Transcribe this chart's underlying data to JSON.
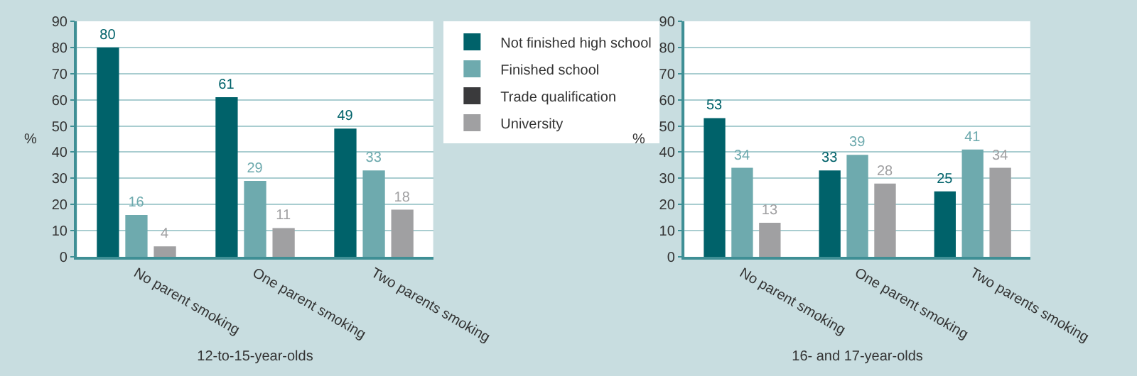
{
  "chart_data": [
    {
      "type": "bar",
      "xlabel": "12-to-15-year-olds",
      "ylabel": "%",
      "categories": [
        "No parent smoking",
        "One parent smoking",
        "Two parents smoking"
      ],
      "series": [
        {
          "name": "Not finished high school",
          "color": "#00626a",
          "values": [
            80,
            61,
            49
          ]
        },
        {
          "name": "Finished school",
          "color": "#6eaaae",
          "values": [
            16,
            29,
            33
          ]
        },
        {
          "name": "Trade qualification",
          "color": "#3a3a3c",
          "values": [
            null,
            null,
            null
          ]
        },
        {
          "name": "University",
          "color": "#a0a0a2",
          "values": [
            4,
            11,
            18
          ]
        }
      ],
      "ylim": [
        0,
        90
      ],
      "yticks": [
        0,
        10,
        20,
        30,
        40,
        50,
        60,
        70,
        80,
        90
      ],
      "grid": "y",
      "legend": "top right",
      "data_labels": true
    },
    {
      "type": "bar",
      "xlabel": "16- and 17-year-olds",
      "ylabel": "%",
      "categories": [
        "No parent smoking",
        "One parent smoking",
        "Two parents smoking"
      ],
      "series": [
        {
          "color": "#00626a",
          "values": [
            53,
            33,
            25
          ]
        },
        {
          "color": "#6eaaae",
          "values": [
            34,
            39,
            41
          ]
        },
        {
          "color": "#a0a0a2",
          "values": [
            13,
            28,
            34
          ]
        }
      ],
      "ylim": [
        0,
        90
      ],
      "yticks": [
        0,
        10,
        20,
        30,
        40,
        50,
        60,
        70,
        80,
        90
      ],
      "grid": "y",
      "data_labels": true
    }
  ]
}
